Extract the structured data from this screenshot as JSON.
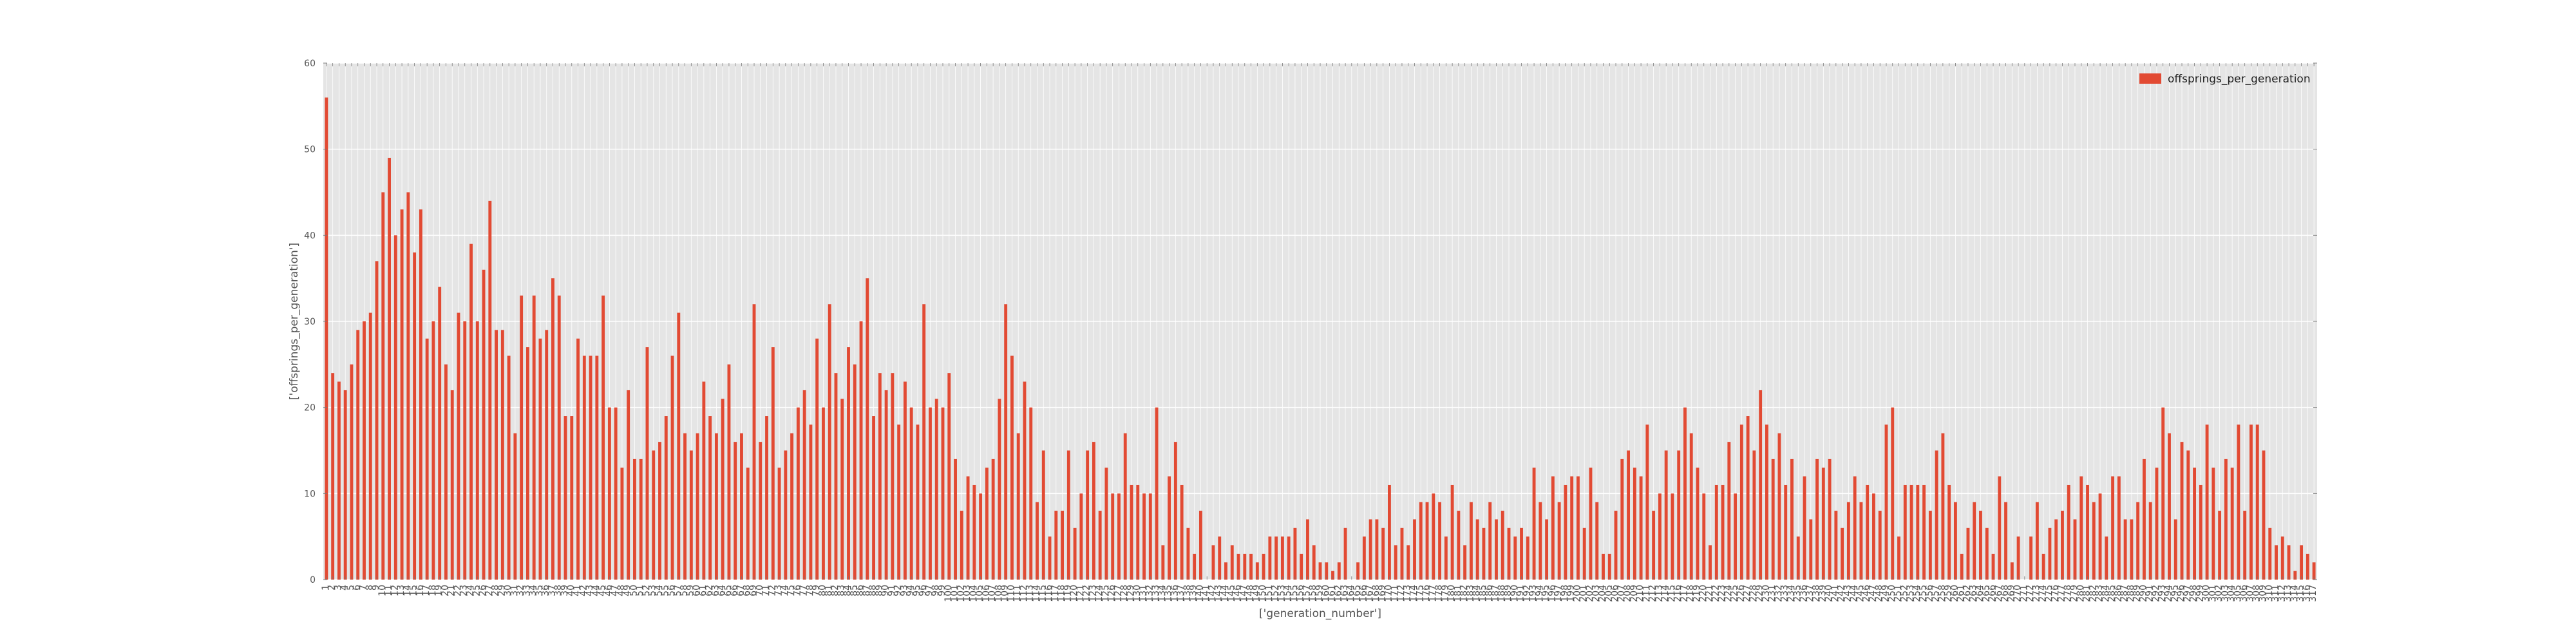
{
  "chart_data": {
    "type": "bar",
    "xlabel": "['generation_number']",
    "ylabel": "['offsprings_per_generation']",
    "ylim": [
      0,
      60
    ],
    "yticks": [
      0,
      10,
      20,
      30,
      40,
      50,
      60
    ],
    "grid": true,
    "legend_position": "top-right",
    "x_start": 1,
    "series": [
      {
        "name": "offsprings_per_generation",
        "color": "#e24a33",
        "values": [
          56,
          24,
          23,
          22,
          25,
          29,
          30,
          31,
          37,
          45,
          49,
          40,
          43,
          45,
          38,
          43,
          28,
          30,
          34,
          25,
          22,
          31,
          30,
          39,
          30,
          36,
          44,
          29,
          29,
          26,
          17,
          33,
          27,
          33,
          28,
          29,
          35,
          33,
          19,
          19,
          28,
          26,
          26,
          26,
          33,
          20,
          20,
          13,
          22,
          14,
          14,
          27,
          15,
          16,
          19,
          26,
          31,
          17,
          15,
          17,
          23,
          19,
          17,
          21,
          25,
          16,
          17,
          13,
          32,
          16,
          19,
          27,
          13,
          15,
          17,
          20,
          22,
          18,
          28,
          20,
          32,
          24,
          21,
          27,
          25,
          30,
          35,
          19,
          24,
          22,
          24,
          18,
          23,
          20,
          18,
          32,
          20,
          21,
          20,
          24,
          14,
          8,
          12,
          11,
          10,
          13,
          14,
          21,
          32,
          26,
          17,
          23,
          20,
          9,
          15,
          5,
          8,
          8,
          15,
          6,
          10,
          15,
          16,
          8,
          13,
          10,
          10,
          17,
          11,
          11,
          10,
          10,
          20,
          4,
          12,
          16,
          11,
          6,
          3,
          8,
          0,
          4,
          5,
          2,
          4,
          3,
          3,
          3,
          2,
          3,
          5,
          5,
          5,
          5,
          6,
          3,
          7,
          4,
          2,
          2,
          1,
          2,
          6,
          0,
          2,
          5,
          7,
          7,
          6,
          11,
          4,
          6,
          4,
          7,
          9,
          9,
          10,
          9,
          5,
          11,
          8,
          4,
          9,
          7,
          6,
          9,
          7,
          8,
          6,
          5,
          6,
          5,
          13,
          9,
          7,
          12,
          9,
          11,
          12,
          12,
          6,
          13,
          9,
          3,
          3,
          8,
          14,
          15,
          13,
          12,
          18,
          8,
          10,
          15,
          10,
          15,
          20,
          17,
          13,
          10,
          4,
          11,
          11,
          16,
          10,
          18,
          19,
          15,
          22,
          18,
          14,
          17,
          11,
          14,
          5,
          12,
          7,
          14,
          13,
          14,
          8,
          6,
          9,
          12,
          9,
          11,
          10,
          8,
          18,
          20,
          5,
          11,
          11,
          11,
          11,
          8,
          15,
          17,
          11,
          9,
          3,
          6,
          9,
          8,
          6,
          3,
          12,
          9,
          2,
          5,
          0,
          5,
          9,
          3,
          6,
          7,
          8,
          11,
          7,
          12,
          11,
          9,
          10,
          5,
          12,
          12,
          7,
          7,
          9,
          14,
          9,
          13,
          20,
          17,
          7,
          16,
          15,
          13,
          11,
          18,
          13,
          8,
          14,
          13,
          18,
          8,
          18,
          18,
          15,
          6,
          4,
          5,
          4,
          1,
          4,
          3,
          2
        ]
      }
    ]
  }
}
